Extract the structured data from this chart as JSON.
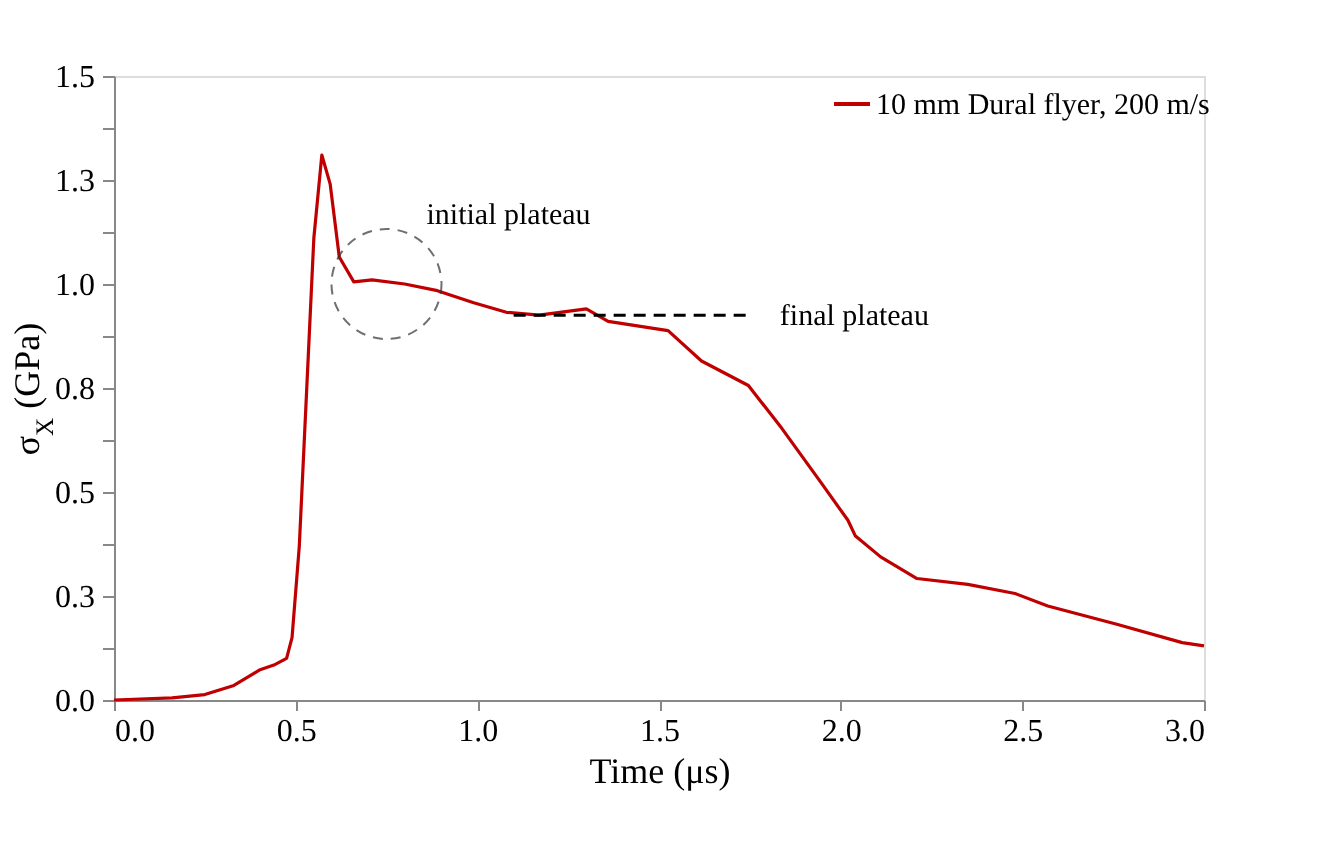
{
  "chart_data": {
    "type": "line",
    "xlabel": "Time (μs)",
    "ylabel": "σ$_{X}$ (GPa)",
    "xlim": [
      0,
      3
    ],
    "xticks": [
      {
        "value": 0,
        "label": "0.0"
      },
      0.5,
      {
        "value": 1,
        "label": "1.0"
      },
      1.5,
      {
        "value": 2,
        "label": "2.0"
      },
      2.5,
      {
        "value": 3,
        "label": "3.0"
      }
    ],
    "ylim": [
      0,
      1.5
    ],
    "yticks": [
      {
        "value": 0,
        "label": "0.0"
      },
      {
        "value": 0.125,
        "label": null
      },
      {
        "value": 0.25,
        "label": "0.3"
      },
      {
        "value": 0.375,
        "label": null
      },
      {
        "value": 0.5,
        "label": "0.5"
      },
      {
        "value": 0.625,
        "label": null
      },
      {
        "value": 0.75,
        "label": "0.8"
      },
      {
        "value": 0.875,
        "label": null
      },
      {
        "value": 1.0,
        "label": "1.0"
      },
      {
        "value": 1.125,
        "label": null
      },
      {
        "value": 1.25,
        "label": "1.3"
      },
      {
        "value": 1.375,
        "label": null
      },
      {
        "value": 1.5,
        "label": "1.5"
      }
    ],
    "grid": false,
    "legend": "top right",
    "marker": "none",
    "series": [
      {
        "name": "10 mm Dural flyer, 200 m/s",
        "color": "#c00000",
        "line_style": "solid",
        "x": [
          0,
          0.16,
          0.25,
          0.33,
          0.4,
          0.44,
          0.475,
          0.49,
          0.51,
          0.53,
          0.55,
          0.572,
          0.595,
          0.62,
          0.66,
          0.71,
          0.8,
          0.89,
          0.99,
          1.08,
          1.17,
          1.3,
          1.36,
          1.525,
          1.617,
          1.746,
          1.838,
          1.948,
          2.02,
          2.04,
          2.11,
          2.21,
          2.35,
          2.48,
          2.57,
          2.76,
          2.94,
          3.0
        ],
        "values": [
          0,
          0.005,
          0.013,
          0.035,
          0.072,
          0.084,
          0.1,
          0.15,
          0.37,
          0.74,
          1.11,
          1.31,
          1.24,
          1.065,
          1.005,
          1.01,
          1.0,
          0.984,
          0.955,
          0.932,
          0.925,
          0.94,
          0.91,
          0.888,
          0.815,
          0.756,
          0.653,
          0.52,
          0.432,
          0.395,
          0.344,
          0.292,
          0.278,
          0.256,
          0.226,
          0.182,
          0.138,
          0.13
        ]
      },
      {
        "color": "#000000",
        "line_style": "dashed",
        "x": [
          1.1,
          1.75
        ],
        "values": [
          0.925,
          0.925
        ]
      }
    ],
    "annotations": [
      {
        "text": "initial plateau",
        "x": 0.75,
        "y": 1.0
      },
      {
        "text": "final plateau",
        "x": 1.75,
        "y": 0.925
      }
    ]
  }
}
